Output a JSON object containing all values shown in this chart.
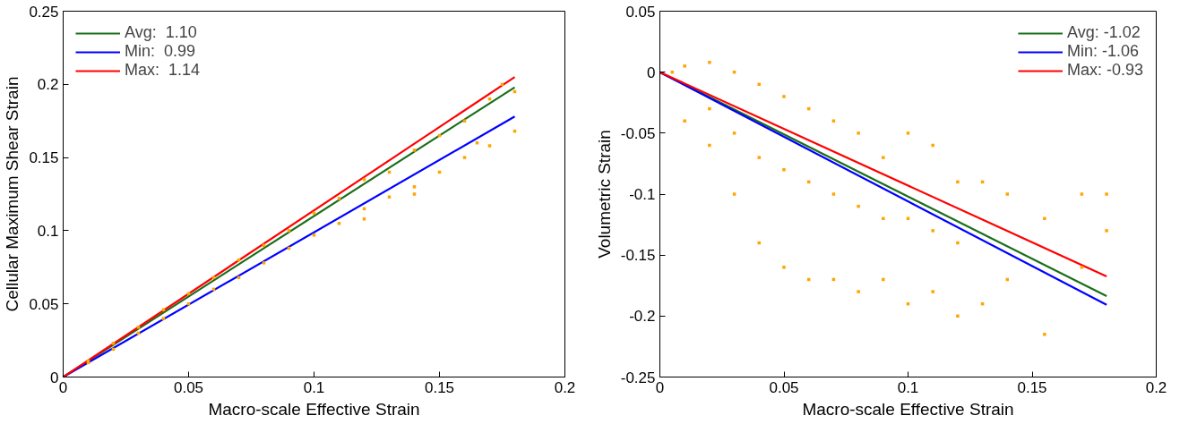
{
  "chart_data": [
    {
      "type": "scatter",
      "xlabel": "Macro-scale Effective Strain",
      "ylabel": "Cellular Maximum Shear Strain",
      "xlim": [
        0,
        0.2
      ],
      "ylim": [
        0,
        0.25
      ],
      "xticks": [
        0,
        0.05,
        0.1,
        0.15,
        0.2
      ],
      "yticks": [
        0,
        0.05,
        0.1,
        0.15,
        0.2,
        0.25
      ],
      "grid": false,
      "legend": "top left",
      "series": [
        {
          "color": "#ffa500",
          "marker": "square",
          "x": [
            0.01,
            0.01,
            0.02,
            0.02,
            0.03,
            0.03,
            0.04,
            0.04,
            0.05,
            0.05,
            0.06,
            0.06,
            0.07,
            0.07,
            0.08,
            0.08,
            0.09,
            0.09,
            0.1,
            0.1,
            0.11,
            0.11,
            0.12,
            0.12,
            0.12,
            0.13,
            0.13,
            0.14,
            0.14,
            0.14,
            0.15,
            0.15,
            0.16,
            0.16,
            0.165,
            0.17,
            0.17,
            0.175,
            0.18,
            0.18
          ],
          "values": [
            0.0098,
            0.011,
            0.019,
            0.023,
            0.03,
            0.034,
            0.04,
            0.046,
            0.05,
            0.057,
            0.06,
            0.068,
            0.068,
            0.08,
            0.078,
            0.09,
            0.088,
            0.1,
            0.097,
            0.112,
            0.105,
            0.122,
            0.108,
            0.115,
            0.135,
            0.123,
            0.14,
            0.125,
            0.13,
            0.155,
            0.14,
            0.165,
            0.15,
            0.175,
            0.16,
            0.158,
            0.19,
            0.2,
            0.168,
            0.195
          ]
        },
        {
          "type": "line",
          "name": "Avg:  1.10",
          "color": "#1a6e1a",
          "x": [
            0,
            0.18
          ],
          "values": [
            0,
            0.198
          ]
        },
        {
          "type": "line",
          "name": "Min:  0.99",
          "color": "#0000ff",
          "x": [
            0,
            0.18
          ],
          "values": [
            0,
            0.178
          ]
        },
        {
          "type": "line",
          "name": "Max:  1.14",
          "color": "#ff0000",
          "x": [
            0,
            0.18
          ],
          "values": [
            0,
            0.205
          ]
        }
      ]
    },
    {
      "type": "scatter",
      "xlabel": "Macro-scale Effective Strain",
      "ylabel": "Volumetric Strain",
      "xlim": [
        0,
        0.2
      ],
      "ylim": [
        -0.25,
        0.05
      ],
      "xticks": [
        0,
        0.05,
        0.1,
        0.15,
        0.2
      ],
      "yticks": [
        -0.25,
        -0.2,
        -0.15,
        -0.1,
        -0.05,
        0,
        0.05
      ],
      "grid": false,
      "legend": "top right",
      "series": [
        {
          "color": "#ffa500",
          "marker": "square",
          "x": [
            0.005,
            0.01,
            0.01,
            0.02,
            0.02,
            0.02,
            0.03,
            0.03,
            0.03,
            0.04,
            0.04,
            0.04,
            0.05,
            0.05,
            0.05,
            0.06,
            0.06,
            0.06,
            0.07,
            0.07,
            0.07,
            0.08,
            0.08,
            0.08,
            0.09,
            0.09,
            0.09,
            0.1,
            0.1,
            0.1,
            0.11,
            0.11,
            0.11,
            0.12,
            0.12,
            0.12,
            0.13,
            0.13,
            0.14,
            0.14,
            0.155,
            0.155,
            0.17,
            0.17,
            0.18,
            0.18
          ],
          "values": [
            0,
            0.005,
            -0.04,
            0.008,
            -0.03,
            -0.06,
            0,
            -0.05,
            -0.1,
            -0.01,
            -0.07,
            -0.14,
            -0.02,
            -0.08,
            -0.16,
            -0.03,
            -0.09,
            -0.17,
            -0.04,
            -0.1,
            -0.17,
            -0.05,
            -0.11,
            -0.18,
            -0.07,
            -0.12,
            -0.17,
            -0.05,
            -0.12,
            -0.19,
            -0.06,
            -0.13,
            -0.18,
            -0.09,
            -0.14,
            -0.2,
            -0.09,
            -0.19,
            -0.1,
            -0.17,
            -0.12,
            -0.215,
            -0.1,
            -0.16,
            -0.1,
            -0.13
          ]
        },
        {
          "type": "line",
          "name": "Avg: -1.02",
          "color": "#1a6e1a",
          "x": [
            0,
            0.18
          ],
          "values": [
            0,
            -0.1836
          ]
        },
        {
          "type": "line",
          "name": "Min: -1.06",
          "color": "#0000ff",
          "x": [
            0,
            0.18
          ],
          "values": [
            0,
            -0.1908
          ]
        },
        {
          "type": "line",
          "name": "Max: -0.93",
          "color": "#ff0000",
          "x": [
            0,
            0.18
          ],
          "values": [
            0,
            -0.1674
          ]
        }
      ]
    }
  ]
}
